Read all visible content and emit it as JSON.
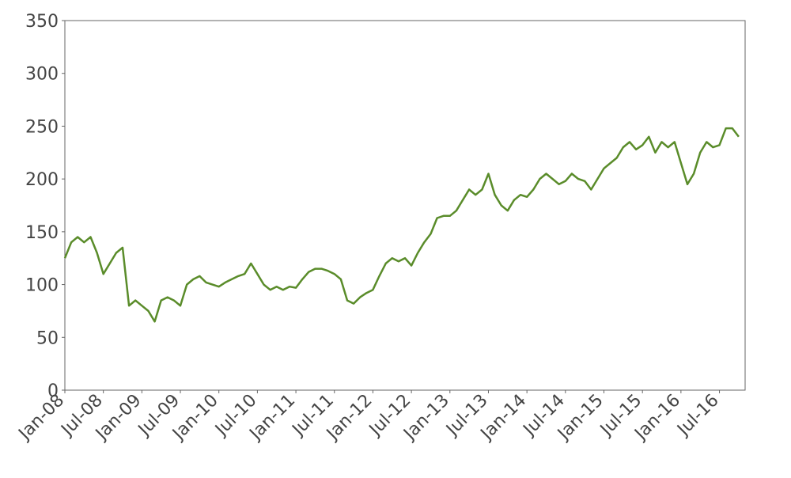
{
  "chart_data": {
    "type": "line",
    "x": [
      "2008-01",
      "2008-02",
      "2008-03",
      "2008-04",
      "2008-05",
      "2008-06",
      "2008-07",
      "2008-08",
      "2008-09",
      "2008-10",
      "2008-11",
      "2008-12",
      "2009-01",
      "2009-02",
      "2009-03",
      "2009-04",
      "2009-05",
      "2009-06",
      "2009-07",
      "2009-08",
      "2009-09",
      "2009-10",
      "2009-11",
      "2009-12",
      "2010-01",
      "2010-02",
      "2010-03",
      "2010-04",
      "2010-05",
      "2010-06",
      "2010-07",
      "2010-08",
      "2010-09",
      "2010-10",
      "2010-11",
      "2010-12",
      "2011-01",
      "2011-02",
      "2011-03",
      "2011-04",
      "2011-05",
      "2011-06",
      "2011-07",
      "2011-08",
      "2011-09",
      "2011-10",
      "2011-11",
      "2011-12",
      "2012-01",
      "2012-02",
      "2012-03",
      "2012-04",
      "2012-05",
      "2012-06",
      "2012-07",
      "2012-08",
      "2012-09",
      "2012-10",
      "2012-11",
      "2012-12",
      "2013-01",
      "2013-02",
      "2013-03",
      "2013-04",
      "2013-05",
      "2013-06",
      "2013-07",
      "2013-08",
      "2013-09",
      "2013-10",
      "2013-11",
      "2013-12",
      "2014-01",
      "2014-02",
      "2014-03",
      "2014-04",
      "2014-05",
      "2014-06",
      "2014-07",
      "2014-08",
      "2014-09",
      "2014-10",
      "2014-11",
      "2014-12",
      "2015-01",
      "2015-02",
      "2015-03",
      "2015-04",
      "2015-05",
      "2015-06",
      "2015-07",
      "2015-08",
      "2015-09",
      "2015-10",
      "2015-11",
      "2015-12",
      "2016-01",
      "2016-02",
      "2016-03",
      "2016-04",
      "2016-05",
      "2016-06",
      "2016-07",
      "2016-08",
      "2016-09",
      "2016-10"
    ],
    "series": [
      {
        "color": "#5a8c2a",
        "values": [
          125,
          140,
          145,
          140,
          145,
          130,
          110,
          120,
          130,
          135,
          80,
          85,
          80,
          75,
          65,
          85,
          88,
          85,
          80,
          100,
          105,
          108,
          102,
          100,
          98,
          102,
          105,
          108,
          110,
          120,
          110,
          100,
          95,
          98,
          95,
          98,
          97,
          105,
          112,
          115,
          115,
          113,
          110,
          105,
          85,
          82,
          88,
          92,
          95,
          108,
          120,
          125,
          122,
          125,
          118,
          130,
          140,
          148,
          163,
          165,
          165,
          170,
          180,
          190,
          185,
          190,
          205,
          185,
          175,
          170,
          180,
          185,
          183,
          190,
          200,
          205,
          200,
          195,
          198,
          205,
          200,
          198,
          190,
          200,
          210,
          215,
          220,
          230,
          235,
          228,
          232,
          240,
          225,
          235,
          230,
          235,
          215,
          195,
          205,
          225,
          235,
          230,
          232,
          248,
          248,
          240
        ]
      }
    ],
    "xlim": [
      "2008-01",
      "2016-11"
    ],
    "xticks": [
      {
        "value": "2008-01",
        "label": "Jan-08"
      },
      {
        "value": "2008-07",
        "label": "Jul-08"
      },
      {
        "value": "2009-01",
        "label": "Jan-09"
      },
      {
        "value": "2009-07",
        "label": "Jul-09"
      },
      {
        "value": "2010-01",
        "label": "Jan-10"
      },
      {
        "value": "2010-07",
        "label": "Jul-10"
      },
      {
        "value": "2011-01",
        "label": "Jan-11"
      },
      {
        "value": "2011-07",
        "label": "Jul-11"
      },
      {
        "value": "2012-01",
        "label": "Jan-12"
      },
      {
        "value": "2012-07",
        "label": "Jul-12"
      },
      {
        "value": "2013-01",
        "label": "Jan-13"
      },
      {
        "value": "2013-07",
        "label": "Jul-13"
      },
      {
        "value": "2014-01",
        "label": "Jan-14"
      },
      {
        "value": "2014-07",
        "label": "Jul-14"
      },
      {
        "value": "2015-01",
        "label": "Jan-15"
      },
      {
        "value": "2015-07",
        "label": "Jul-15"
      },
      {
        "value": "2016-01",
        "label": "Jan-16"
      },
      {
        "value": "2016-07",
        "label": "Jul-16"
      }
    ],
    "ylim": [
      0,
      350
    ],
    "yticks": [
      0,
      50,
      100,
      150,
      200,
      250,
      300,
      350
    ]
  }
}
